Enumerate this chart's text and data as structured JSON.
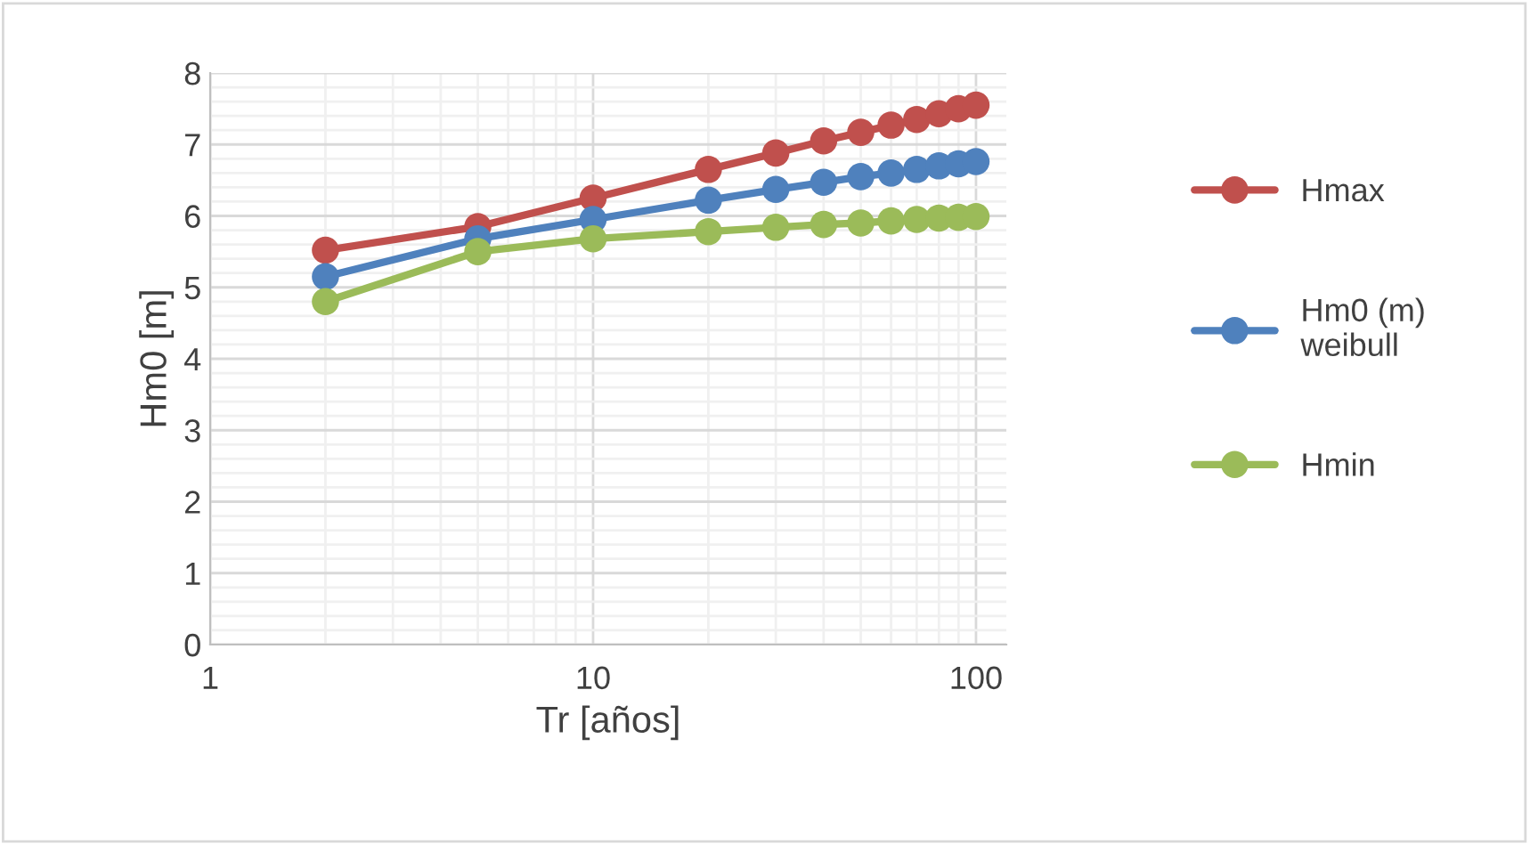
{
  "chart_data": {
    "type": "line",
    "xlabel": "Tr [años]",
    "ylabel": "Hm0 [m]",
    "x": [
      2,
      5,
      10,
      20,
      30,
      40,
      50,
      60,
      70,
      80,
      90,
      100
    ],
    "series": [
      {
        "name": "Hmax",
        "color": "#c0504d",
        "values": [
          5.52,
          5.85,
          6.25,
          6.65,
          6.88,
          7.05,
          7.17,
          7.27,
          7.35,
          7.43,
          7.5,
          7.55
        ]
      },
      {
        "name": "Hm0 (m)\nweibull",
        "color": "#4f81bd",
        "values": [
          5.15,
          5.68,
          5.95,
          6.22,
          6.37,
          6.47,
          6.55,
          6.6,
          6.65,
          6.7,
          6.73,
          6.76
        ]
      },
      {
        "name": "Hmin",
        "color": "#9bbb59",
        "values": [
          4.8,
          5.5,
          5.68,
          5.78,
          5.84,
          5.88,
          5.9,
          5.93,
          5.95,
          5.97,
          5.98,
          5.99
        ]
      }
    ],
    "log": "x",
    "xlim": [
      1,
      120
    ],
    "xticks": [
      1,
      10,
      100
    ],
    "ylim": [
      0,
      8
    ],
    "yticks": [
      0,
      1,
      2,
      3,
      4,
      5,
      6,
      7,
      8
    ],
    "grid": true,
    "legend": "right",
    "marker": "circle",
    "line_style": "solid"
  }
}
